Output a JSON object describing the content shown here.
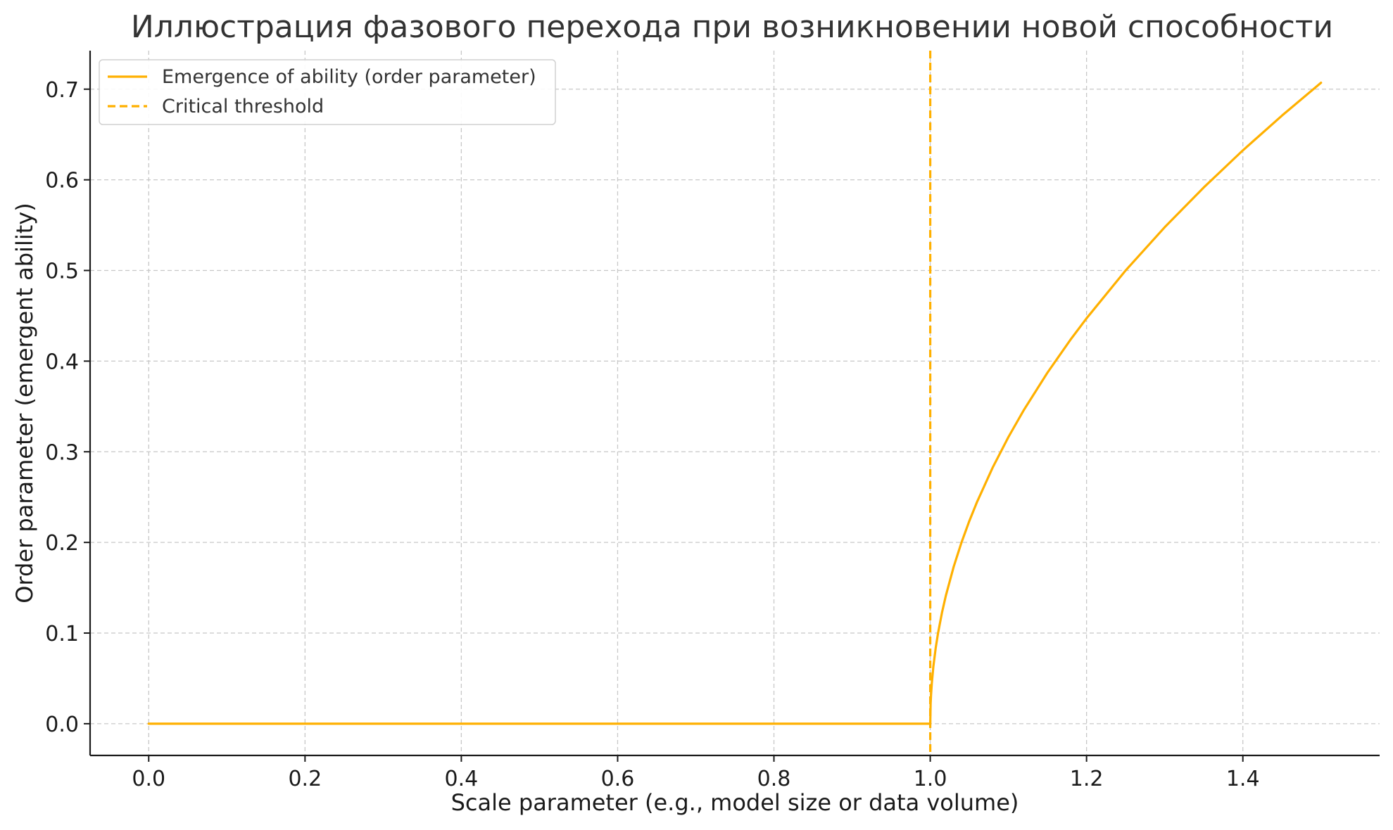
{
  "chart_data": {
    "type": "line",
    "title": "Иллюстрация фазового перехода при возникновении новой способности",
    "xlabel": "Scale parameter (e.g., model size or data volume)",
    "ylabel": "Order parameter (emergent ability)",
    "xlim": [
      -0.075,
      1.575
    ],
    "ylim": [
      -0.035,
      0.7425
    ],
    "x_ticks": [
      0.0,
      0.2,
      0.4,
      0.6,
      0.8,
      1.0,
      1.2,
      1.4
    ],
    "y_ticks": [
      0.0,
      0.1,
      0.2,
      0.3,
      0.4,
      0.5,
      0.6,
      0.7
    ],
    "x_tick_labels": [
      "0.0",
      "0.2",
      "0.4",
      "0.6",
      "0.8",
      "1.0",
      "1.2",
      "1.4"
    ],
    "y_tick_labels": [
      "0.0",
      "0.1",
      "0.2",
      "0.3",
      "0.4",
      "0.5",
      "0.6",
      "0.7"
    ],
    "grid": true,
    "legend_position": "top-left",
    "series": [
      {
        "name": "Emergence of ability (order parameter)",
        "style": "solid",
        "color": "#FFB000",
        "x": [
          0.0,
          0.2,
          0.4,
          0.6,
          0.8,
          0.95,
          1.0,
          1.0005,
          1.001,
          1.002,
          1.004,
          1.007,
          1.01,
          1.015,
          1.02,
          1.03,
          1.04,
          1.05,
          1.06,
          1.08,
          1.1,
          1.12,
          1.15,
          1.18,
          1.2,
          1.25,
          1.3,
          1.35,
          1.4,
          1.45,
          1.5
        ],
        "y": [
          0.0,
          0.0,
          0.0,
          0.0,
          0.0,
          0.0,
          0.0,
          0.0224,
          0.0316,
          0.0447,
          0.0632,
          0.0837,
          0.1,
          0.1225,
          0.1414,
          0.1732,
          0.2,
          0.2236,
          0.2449,
          0.2828,
          0.3162,
          0.3464,
          0.3873,
          0.4243,
          0.4472,
          0.5,
          0.5477,
          0.5916,
          0.6325,
          0.6708,
          0.7071
        ]
      },
      {
        "name": "Critical threshold",
        "style": "dashed",
        "color": "#FFB000",
        "x_value": 1.0
      }
    ]
  }
}
